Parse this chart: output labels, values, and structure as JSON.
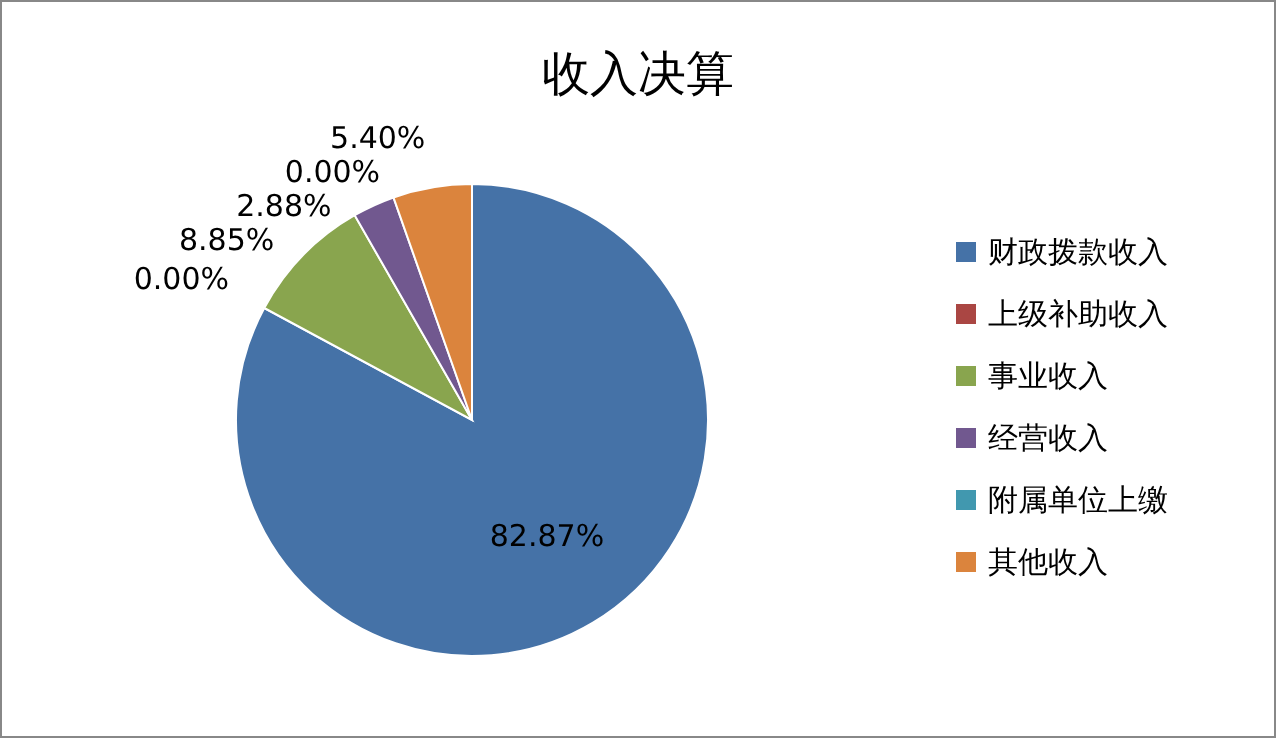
{
  "chart_data": {
    "type": "pie",
    "title": "收入决算",
    "categories": [
      "财政拨款收入",
      "上级补助收入",
      "事业收入",
      "经营收入",
      "附属单位上缴",
      "其他收入"
    ],
    "values": [
      82.87,
      0.0,
      8.85,
      2.88,
      0.0,
      5.4
    ],
    "colors": [
      "#4572a7",
      "#aa4643",
      "#89a54e",
      "#71588f",
      "#4198af",
      "#db843d"
    ],
    "value_labels": [
      "82.87%",
      "0.00%",
      "8.85%",
      "2.88%",
      "0.00%",
      "5.40%"
    ],
    "legend": "right"
  }
}
